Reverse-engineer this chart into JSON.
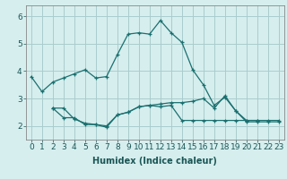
{
  "xlabel": "Humidex (Indice chaleur)",
  "background_color": "#d6eeee",
  "grid_color": "#aacccc",
  "line_color": "#1a7070",
  "xlim": [
    -0.5,
    23.5
  ],
  "ylim": [
    1.5,
    6.4
  ],
  "yticks": [
    2,
    3,
    4,
    5,
    6
  ],
  "xticks": [
    0,
    1,
    2,
    3,
    4,
    5,
    6,
    7,
    8,
    9,
    10,
    11,
    12,
    13,
    14,
    15,
    16,
    17,
    18,
    19,
    20,
    21,
    22,
    23
  ],
  "line1_x": [
    0,
    1,
    2,
    3,
    4,
    5,
    6,
    7,
    8,
    9,
    10,
    11,
    12,
    13,
    14,
    15,
    16,
    17,
    18,
    19,
    20,
    21
  ],
  "line1_y": [
    3.8,
    3.25,
    3.6,
    3.75,
    3.9,
    4.05,
    3.75,
    3.8,
    4.6,
    5.35,
    5.4,
    5.35,
    5.85,
    5.4,
    5.05,
    4.05,
    3.5,
    2.75,
    3.05,
    2.55,
    2.2,
    2.2
  ],
  "line2_x": [
    2,
    3,
    4,
    5,
    6,
    7,
    8,
    9,
    10,
    11,
    12,
    13,
    14,
    15,
    16,
    17,
    18,
    19,
    20,
    21,
    22,
    23
  ],
  "line2_y": [
    2.65,
    2.65,
    2.25,
    2.1,
    2.05,
    2.0,
    2.4,
    2.5,
    2.7,
    2.75,
    2.7,
    2.75,
    2.2,
    2.2,
    2.2,
    2.2,
    2.2,
    2.2,
    2.2,
    2.2,
    2.2,
    2.2
  ],
  "line3_x": [
    2,
    3,
    4,
    5,
    6,
    7,
    8,
    9,
    10,
    11,
    12,
    13,
    14,
    15,
    16,
    17,
    18,
    19,
    20,
    21,
    22,
    23
  ],
  "line3_y": [
    2.65,
    2.3,
    2.3,
    2.05,
    2.05,
    1.95,
    2.4,
    2.5,
    2.7,
    2.75,
    2.8,
    2.85,
    2.85,
    2.9,
    3.0,
    2.65,
    3.1,
    2.55,
    2.15,
    2.15,
    2.15,
    2.15
  ],
  "tick_fontsize": 6.5,
  "xlabel_fontsize": 7.0
}
